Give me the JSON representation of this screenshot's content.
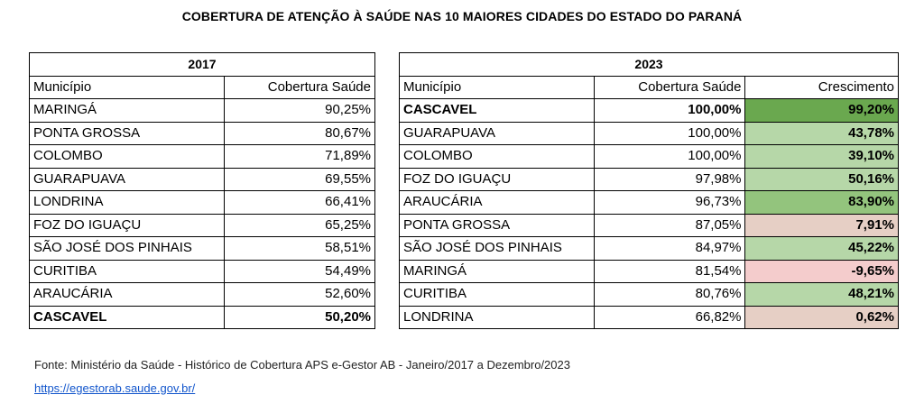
{
  "title": "COBERTURA DE ATENÇÃO À SAÚDE NAS 10 MAIORES CIDADES DO ESTADO DO PARANÁ",
  "t2017": {
    "year": "2017",
    "col_municipio": "Município",
    "col_cobertura": "Cobertura Saúde",
    "rows": [
      {
        "city": "MARINGÁ",
        "cov": "90,25%"
      },
      {
        "city": "PONTA GROSSA",
        "cov": "80,67%"
      },
      {
        "city": "COLOMBO",
        "cov": "71,89%"
      },
      {
        "city": "GUARAPUAVA",
        "cov": "69,55%"
      },
      {
        "city": "LONDRINA",
        "cov": "66,41%"
      },
      {
        "city": "FOZ DO IGUAÇU",
        "cov": "65,25%"
      },
      {
        "city": "SÃO JOSÉ DOS PINHAIS",
        "cov": "58,51%"
      },
      {
        "city": "CURITIBA",
        "cov": "54,49%"
      },
      {
        "city": "ARAUCÁRIA",
        "cov": "52,60%"
      },
      {
        "city": "CASCAVEL",
        "cov": "50,20%"
      }
    ]
  },
  "t2023": {
    "year": "2023",
    "col_municipio": "Município",
    "col_cobertura": "Cobertura Saúde",
    "col_crescimento": "Crescimento",
    "rows": [
      {
        "city": "CASCAVEL",
        "cov": "100,00%",
        "growth": "99,20%"
      },
      {
        "city": "GUARAPUAVA",
        "cov": "100,00%",
        "growth": "43,78%"
      },
      {
        "city": "COLOMBO",
        "cov": "100,00%",
        "growth": "39,10%"
      },
      {
        "city": "FOZ DO IGUAÇU",
        "cov": "97,98%",
        "growth": "50,16%"
      },
      {
        "city": "ARAUCÁRIA",
        "cov": "96,73%",
        "growth": "83,90%"
      },
      {
        "city": "PONTA GROSSA",
        "cov": "87,05%",
        "growth": "7,91%"
      },
      {
        "city": "SÃO JOSÉ DOS PINHAIS",
        "cov": "84,97%",
        "growth": "45,22%"
      },
      {
        "city": "MARINGÁ",
        "cov": "81,54%",
        "growth": "-9,65%"
      },
      {
        "city": "CURITIBA",
        "cov": "80,76%",
        "growth": "48,21%"
      },
      {
        "city": "LONDRINA",
        "cov": "66,82%",
        "growth": "0,62%"
      }
    ]
  },
  "colors": {
    "dark_green": "#6aa84f",
    "mid_green": "#93c47d",
    "light_green": "#b6d7a8",
    "light_red": "#e6cfc5",
    "pink": "#f4cccc",
    "link": "#1155cc"
  },
  "source": "Fonte: Ministério da Saúde - Histórico de Cobertura APS e-Gestor AB - Janeiro/2017 a Dezembro/2023",
  "link": "https://egestorab.saude.gov.br/"
}
